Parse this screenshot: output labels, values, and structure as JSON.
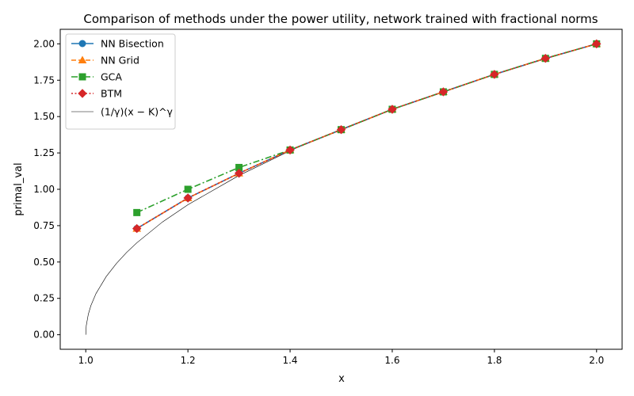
{
  "chart_data": {
    "type": "line",
    "title": "Comparison of methods under the power utility, network trained with fractional norms",
    "xlabel": "x",
    "ylabel": "primal_val",
    "xlim": [
      0.95,
      2.05
    ],
    "ylim": [
      -0.1,
      2.1
    ],
    "xticks": [
      "1.0",
      "1.2",
      "1.4",
      "1.6",
      "1.8",
      "2.0"
    ],
    "yticks": [
      "0.00",
      "0.25",
      "0.50",
      "0.75",
      "1.00",
      "1.25",
      "1.50",
      "1.75",
      "2.00"
    ],
    "grid": false,
    "legend_position": "upper-left",
    "series": [
      {
        "name": "NN Bisection",
        "color": "#1f77b4",
        "linestyle": "solid",
        "marker": "circle",
        "x": [
          1.1,
          1.2,
          1.3,
          1.4,
          1.5,
          1.6,
          1.7,
          1.8,
          1.9,
          2.0
        ],
        "y": [
          0.73,
          0.94,
          1.11,
          1.27,
          1.41,
          1.55,
          1.67,
          1.79,
          1.9,
          2.0
        ]
      },
      {
        "name": "NN Grid",
        "color": "#ff7f0e",
        "linestyle": "dashed",
        "marker": "triangle",
        "x": [
          1.1,
          1.2,
          1.3,
          1.4,
          1.5,
          1.6,
          1.7,
          1.8,
          1.9,
          2.0
        ],
        "y": [
          0.73,
          0.94,
          1.11,
          1.27,
          1.41,
          1.55,
          1.67,
          1.79,
          1.9,
          2.0
        ]
      },
      {
        "name": "GCA",
        "color": "#2ca02c",
        "linestyle": "dashdot",
        "marker": "square",
        "x": [
          1.1,
          1.2,
          1.3,
          1.4,
          1.5,
          1.6,
          1.7,
          1.8,
          1.9,
          2.0
        ],
        "y": [
          0.84,
          1.0,
          1.15,
          1.27,
          1.41,
          1.55,
          1.67,
          1.79,
          1.9,
          2.0
        ]
      },
      {
        "name": "BTM",
        "color": "#d62728",
        "linestyle": "dotted",
        "marker": "diamond",
        "x": [
          1.1,
          1.2,
          1.3,
          1.4,
          1.5,
          1.6,
          1.7,
          1.8,
          1.9,
          2.0
        ],
        "y": [
          0.73,
          0.94,
          1.11,
          1.27,
          1.41,
          1.55,
          1.67,
          1.79,
          1.9,
          2.0
        ]
      },
      {
        "name": "(1/γ)(x − K)^γ",
        "color": "#000000",
        "linestyle": "solid",
        "marker": "none",
        "x": [
          1.0,
          1.001,
          1.005,
          1.01,
          1.02,
          1.04,
          1.06,
          1.08,
          1.1,
          1.15,
          1.2,
          1.3,
          1.4,
          1.5,
          1.6,
          1.7,
          1.8,
          1.9,
          2.0
        ],
        "y": [
          0.0,
          0.063,
          0.141,
          0.2,
          0.283,
          0.4,
          0.49,
          0.566,
          0.632,
          0.775,
          0.894,
          1.095,
          1.265,
          1.414,
          1.549,
          1.673,
          1.789,
          1.897,
          2.0
        ]
      }
    ]
  }
}
